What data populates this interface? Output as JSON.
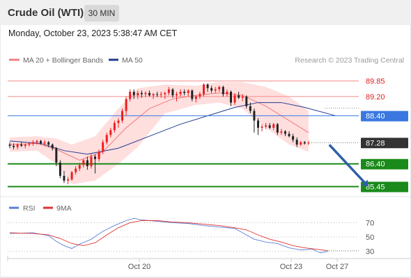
{
  "header": {
    "title": "Crude Oil (WTI)",
    "interval": "30 MIN"
  },
  "date_line": "Monday, October 23, 2023 5:38:47 AM CET",
  "colors": {
    "up": "#ef1e1e",
    "down": "#222222",
    "band": "#ffd6d6",
    "ma20": "#f06b6b",
    "ma50": "#1f3a8f",
    "resistance": "#f08c8c",
    "pivot": "#3a78e0",
    "support": "#1a8a1a",
    "arrow": "#2f5fa8",
    "rsi": "#5b7fd6",
    "rsi_ma": "#e03030"
  },
  "chart_data": [
    {
      "type": "candlestick",
      "instrument": "Crude Oil (WTI)",
      "interval": "30 MIN",
      "legend": [
        {
          "name": "MA 20 + Bollinger Bands",
          "color": "#f08080"
        },
        {
          "name": "MA 50",
          "color": "#1f3a8f"
        }
      ],
      "credit": "Research © 2023 Trading Central",
      "x_ticks": [
        "Oct 20",
        "Oct 23",
        "Oct 27"
      ],
      "ylim": [
        85.35,
        89.95
      ],
      "levels": [
        {
          "label": "89.85",
          "value": 89.85,
          "kind": "resistance"
        },
        {
          "label": "89.20",
          "value": 89.2,
          "kind": "resistance"
        },
        {
          "label": "88.40",
          "value": 88.4,
          "kind": "pivot"
        },
        {
          "label": "87.28",
          "value": 87.28,
          "kind": "last"
        },
        {
          "label": "86.40",
          "value": 86.4,
          "kind": "support"
        },
        {
          "label": "85.45",
          "value": 85.45,
          "kind": "support"
        }
      ],
      "candles": [
        [
          87.2,
          87.3,
          87.05,
          87.15
        ],
        [
          87.15,
          87.25,
          87.0,
          87.1
        ],
        [
          87.1,
          87.25,
          87.0,
          87.2
        ],
        [
          87.2,
          87.3,
          87.1,
          87.15
        ],
        [
          87.15,
          87.25,
          87.05,
          87.2
        ],
        [
          87.2,
          87.3,
          87.12,
          87.25
        ],
        [
          87.25,
          87.38,
          87.15,
          87.3
        ],
        [
          87.3,
          87.4,
          87.2,
          87.35
        ],
        [
          87.35,
          87.4,
          87.2,
          87.25
        ],
        [
          87.25,
          87.38,
          87.15,
          87.3
        ],
        [
          87.3,
          87.35,
          87.1,
          87.2
        ],
        [
          87.2,
          87.25,
          86.95,
          87.05
        ],
        [
          87.05,
          87.1,
          86.3,
          86.45
        ],
        [
          86.45,
          86.55,
          85.8,
          85.9
        ],
        [
          85.9,
          86.1,
          85.6,
          85.7
        ],
        [
          85.7,
          85.85,
          85.55,
          85.75
        ],
        [
          85.75,
          86.1,
          85.7,
          86.05
        ],
        [
          86.05,
          86.3,
          85.95,
          86.2
        ],
        [
          86.2,
          86.45,
          86.1,
          86.35
        ],
        [
          86.35,
          86.6,
          86.25,
          86.55
        ],
        [
          86.55,
          86.7,
          86.15,
          86.3
        ],
        [
          86.3,
          86.8,
          86.2,
          86.7
        ],
        [
          86.7,
          86.8,
          86.0,
          86.6
        ],
        [
          86.6,
          87.0,
          86.5,
          86.9
        ],
        [
          86.9,
          87.4,
          86.8,
          87.3
        ],
        [
          87.3,
          87.7,
          87.2,
          87.6
        ],
        [
          87.6,
          87.9,
          87.5,
          87.8
        ],
        [
          87.8,
          88.2,
          87.7,
          88.1
        ],
        [
          88.1,
          88.3,
          87.9,
          88.2
        ],
        [
          88.2,
          88.7,
          88.1,
          88.6
        ],
        [
          88.6,
          89.2,
          88.4,
          89.1
        ],
        [
          89.1,
          89.5,
          89.0,
          89.4
        ],
        [
          89.4,
          89.5,
          89.1,
          89.25
        ],
        [
          89.25,
          89.45,
          89.1,
          89.35
        ],
        [
          89.35,
          89.45,
          89.15,
          89.3
        ],
        [
          89.3,
          89.42,
          89.18,
          89.35
        ],
        [
          89.35,
          89.45,
          89.2,
          89.25
        ],
        [
          89.25,
          89.35,
          89.1,
          89.3
        ],
        [
          89.3,
          89.4,
          89.18,
          89.28
        ],
        [
          89.28,
          89.4,
          89.15,
          89.3
        ],
        [
          89.3,
          89.4,
          89.1,
          89.35
        ],
        [
          89.35,
          89.6,
          89.25,
          89.5
        ],
        [
          89.5,
          89.55,
          89.15,
          89.25
        ],
        [
          89.25,
          89.4,
          89.0,
          89.3
        ],
        [
          89.3,
          89.5,
          89.2,
          89.4
        ],
        [
          89.4,
          89.5,
          89.25,
          89.35
        ],
        [
          89.35,
          89.5,
          89.2,
          89.45
        ],
        [
          89.45,
          89.5,
          89.0,
          89.1
        ],
        [
          89.1,
          89.25,
          88.95,
          89.2
        ],
        [
          89.2,
          89.4,
          89.1,
          89.3
        ],
        [
          89.3,
          89.75,
          89.2,
          89.7
        ],
        [
          89.7,
          89.75,
          89.4,
          89.55
        ],
        [
          89.55,
          89.65,
          89.35,
          89.45
        ],
        [
          89.45,
          89.6,
          89.35,
          89.5
        ],
        [
          89.5,
          89.65,
          89.4,
          89.6
        ],
        [
          89.6,
          89.65,
          89.2,
          89.3
        ],
        [
          89.3,
          89.5,
          89.2,
          89.4
        ],
        [
          89.4,
          89.45,
          88.8,
          88.95
        ],
        [
          88.95,
          89.35,
          88.85,
          89.25
        ],
        [
          89.25,
          89.4,
          89.1,
          89.15
        ],
        [
          89.15,
          89.3,
          89.0,
          89.2
        ],
        [
          89.2,
          89.25,
          88.7,
          88.8
        ],
        [
          88.8,
          88.95,
          88.5,
          88.6
        ],
        [
          88.6,
          88.7,
          87.7,
          88.2
        ],
        [
          88.2,
          88.3,
          87.6,
          87.9
        ],
        [
          87.9,
          88.05,
          87.75,
          87.95
        ],
        [
          87.95,
          88.1,
          87.85,
          88.0
        ],
        [
          88.0,
          88.1,
          87.85,
          87.9
        ],
        [
          87.9,
          88.1,
          87.8,
          88.05
        ],
        [
          88.05,
          88.1,
          87.6,
          87.7
        ],
        [
          87.7,
          87.85,
          87.6,
          87.75
        ],
        [
          87.75,
          87.8,
          87.55,
          87.65
        ],
        [
          87.65,
          87.75,
          87.5,
          87.55
        ],
        [
          87.55,
          87.65,
          87.3,
          87.4
        ],
        [
          87.4,
          87.5,
          87.1,
          87.2
        ],
        [
          87.2,
          87.35,
          87.15,
          87.3
        ],
        [
          87.3,
          87.35,
          87.2,
          87.25
        ],
        [
          87.25,
          87.35,
          87.18,
          87.28
        ]
      ],
      "ma20": [
        [
          0,
          87.2
        ],
        [
          7,
          87.25
        ],
        [
          12,
          87.0
        ],
        [
          18,
          86.55
        ],
        [
          24,
          86.9
        ],
        [
          30,
          87.9
        ],
        [
          36,
          88.7
        ],
        [
          42,
          89.1
        ],
        [
          48,
          89.25
        ],
        [
          54,
          89.35
        ],
        [
          60,
          89.25
        ],
        [
          66,
          88.8
        ],
        [
          72,
          88.2
        ],
        [
          77,
          87.7
        ]
      ],
      "bb_upper": [
        [
          0,
          87.5
        ],
        [
          7,
          87.55
        ],
        [
          12,
          87.45
        ],
        [
          16,
          87.2
        ],
        [
          22,
          87.55
        ],
        [
          28,
          88.7
        ],
        [
          33,
          89.55
        ],
        [
          40,
          89.7
        ],
        [
          48,
          89.65
        ],
        [
          54,
          89.8
        ],
        [
          60,
          89.8
        ],
        [
          66,
          89.6
        ],
        [
          72,
          89.2
        ],
        [
          77,
          88.6
        ]
      ],
      "bb_lower": [
        [
          0,
          86.9
        ],
        [
          7,
          86.95
        ],
        [
          12,
          86.4
        ],
        [
          16,
          85.55
        ],
        [
          22,
          85.7
        ],
        [
          28,
          86.4
        ],
        [
          33,
          87.1
        ],
        [
          40,
          88.5
        ],
        [
          48,
          88.85
        ],
        [
          54,
          88.95
        ],
        [
          60,
          88.7
        ],
        [
          66,
          87.9
        ],
        [
          72,
          87.2
        ],
        [
          77,
          86.9
        ]
      ],
      "ma50": [
        [
          0,
          87.35
        ],
        [
          8,
          87.25
        ],
        [
          14,
          86.95
        ],
        [
          20,
          86.8
        ],
        [
          28,
          87.05
        ],
        [
          36,
          87.55
        ],
        [
          44,
          88.05
        ],
        [
          52,
          88.45
        ],
        [
          58,
          88.75
        ],
        [
          64,
          88.95
        ],
        [
          70,
          88.95
        ],
        [
          76,
          88.75
        ],
        [
          84,
          88.4
        ]
      ],
      "projection": [
        [
          82,
          87.25
        ],
        [
          90,
          85.45
        ]
      ]
    },
    {
      "type": "line",
      "legend": [
        {
          "name": "RSI",
          "color": "#5b7fd6"
        },
        {
          "name": "9MA",
          "color": "#e03030"
        }
      ],
      "y_ticks": [
        70,
        50,
        30
      ],
      "ylim": [
        20,
        85
      ],
      "series": [
        {
          "name": "RSI",
          "values": [
            [
              0,
              55
            ],
            [
              6,
              56
            ],
            [
              10,
              52
            ],
            [
              12,
              44
            ],
            [
              14,
              38
            ],
            [
              16,
              34
            ],
            [
              18,
              40
            ],
            [
              21,
              47
            ],
            [
              24,
              58
            ],
            [
              27,
              66
            ],
            [
              30,
              73
            ],
            [
              32,
              76
            ],
            [
              34,
              74
            ],
            [
              38,
              72
            ],
            [
              42,
              70
            ],
            [
              46,
              69
            ],
            [
              50,
              66
            ],
            [
              54,
              64
            ],
            [
              58,
              62
            ],
            [
              60,
              56
            ],
            [
              63,
              47
            ],
            [
              66,
              43
            ],
            [
              69,
              41
            ],
            [
              72,
              35
            ],
            [
              75,
              32
            ],
            [
              78,
              33
            ],
            [
              80,
              28
            ],
            [
              82,
              30
            ]
          ]
        },
        {
          "name": "9MA",
          "values": [
            [
              0,
              56
            ],
            [
              6,
              55
            ],
            [
              10,
              53
            ],
            [
              13,
              48
            ],
            [
              16,
              41
            ],
            [
              19,
              38
            ],
            [
              22,
              42
            ],
            [
              25,
              53
            ],
            [
              28,
              63
            ],
            [
              31,
              70
            ],
            [
              34,
              73
            ],
            [
              38,
              73
            ],
            [
              42,
              71
            ],
            [
              46,
              70
            ],
            [
              50,
              68
            ],
            [
              54,
              66
            ],
            [
              58,
              63
            ],
            [
              61,
              60
            ],
            [
              64,
              53
            ],
            [
              67,
              47
            ],
            [
              70,
              43
            ],
            [
              73,
              38
            ],
            [
              76,
              35
            ],
            [
              79,
              33
            ],
            [
              82,
              31
            ]
          ]
        }
      ]
    }
  ]
}
